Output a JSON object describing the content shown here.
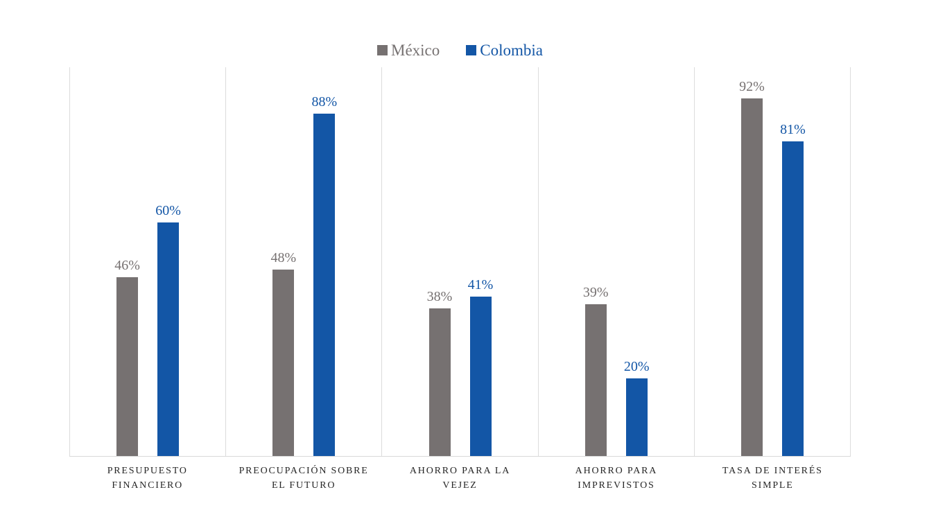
{
  "chart_data": {
    "type": "bar",
    "title": "",
    "xlabel": "",
    "ylabel": "",
    "ylim": [
      0,
      100
    ],
    "grid": false,
    "legend_position": "top-center",
    "axis_line_color": "#d9d9d9",
    "separator_color": "#dcdcdc",
    "category_label_color": "#262626",
    "categories": [
      "PRESUPUESTO FINANCIERO",
      "PREOCUPACIÓN SOBRE EL FUTURO",
      "AHORRO PARA LA VEJEZ",
      "AHORRO PARA IMPREVISTOS",
      "TASA DE INTERÉS SIMPLE"
    ],
    "category_lines": [
      [
        "PRESUPUESTO",
        "FINANCIERO"
      ],
      [
        "PREOCUPACIÓN SOBRE",
        "EL FUTURO"
      ],
      [
        "AHORRO PARA LA",
        "VEJEZ"
      ],
      [
        "AHORRO PARA",
        "IMPREVISTOS"
      ],
      [
        "TASA DE INTERÉS",
        "SIMPLE"
      ]
    ],
    "series": [
      {
        "name": "México",
        "color": "#767171",
        "values": [
          46,
          48,
          38,
          39,
          92
        ],
        "labels": [
          "46%",
          "48%",
          "38%",
          "39%",
          "92%"
        ]
      },
      {
        "name": "Colombia",
        "color": "#1356a6",
        "values": [
          60,
          88,
          41,
          20,
          81
        ],
        "labels": [
          "60%",
          "88%",
          "41%",
          "20%",
          "81%"
        ]
      }
    ]
  }
}
